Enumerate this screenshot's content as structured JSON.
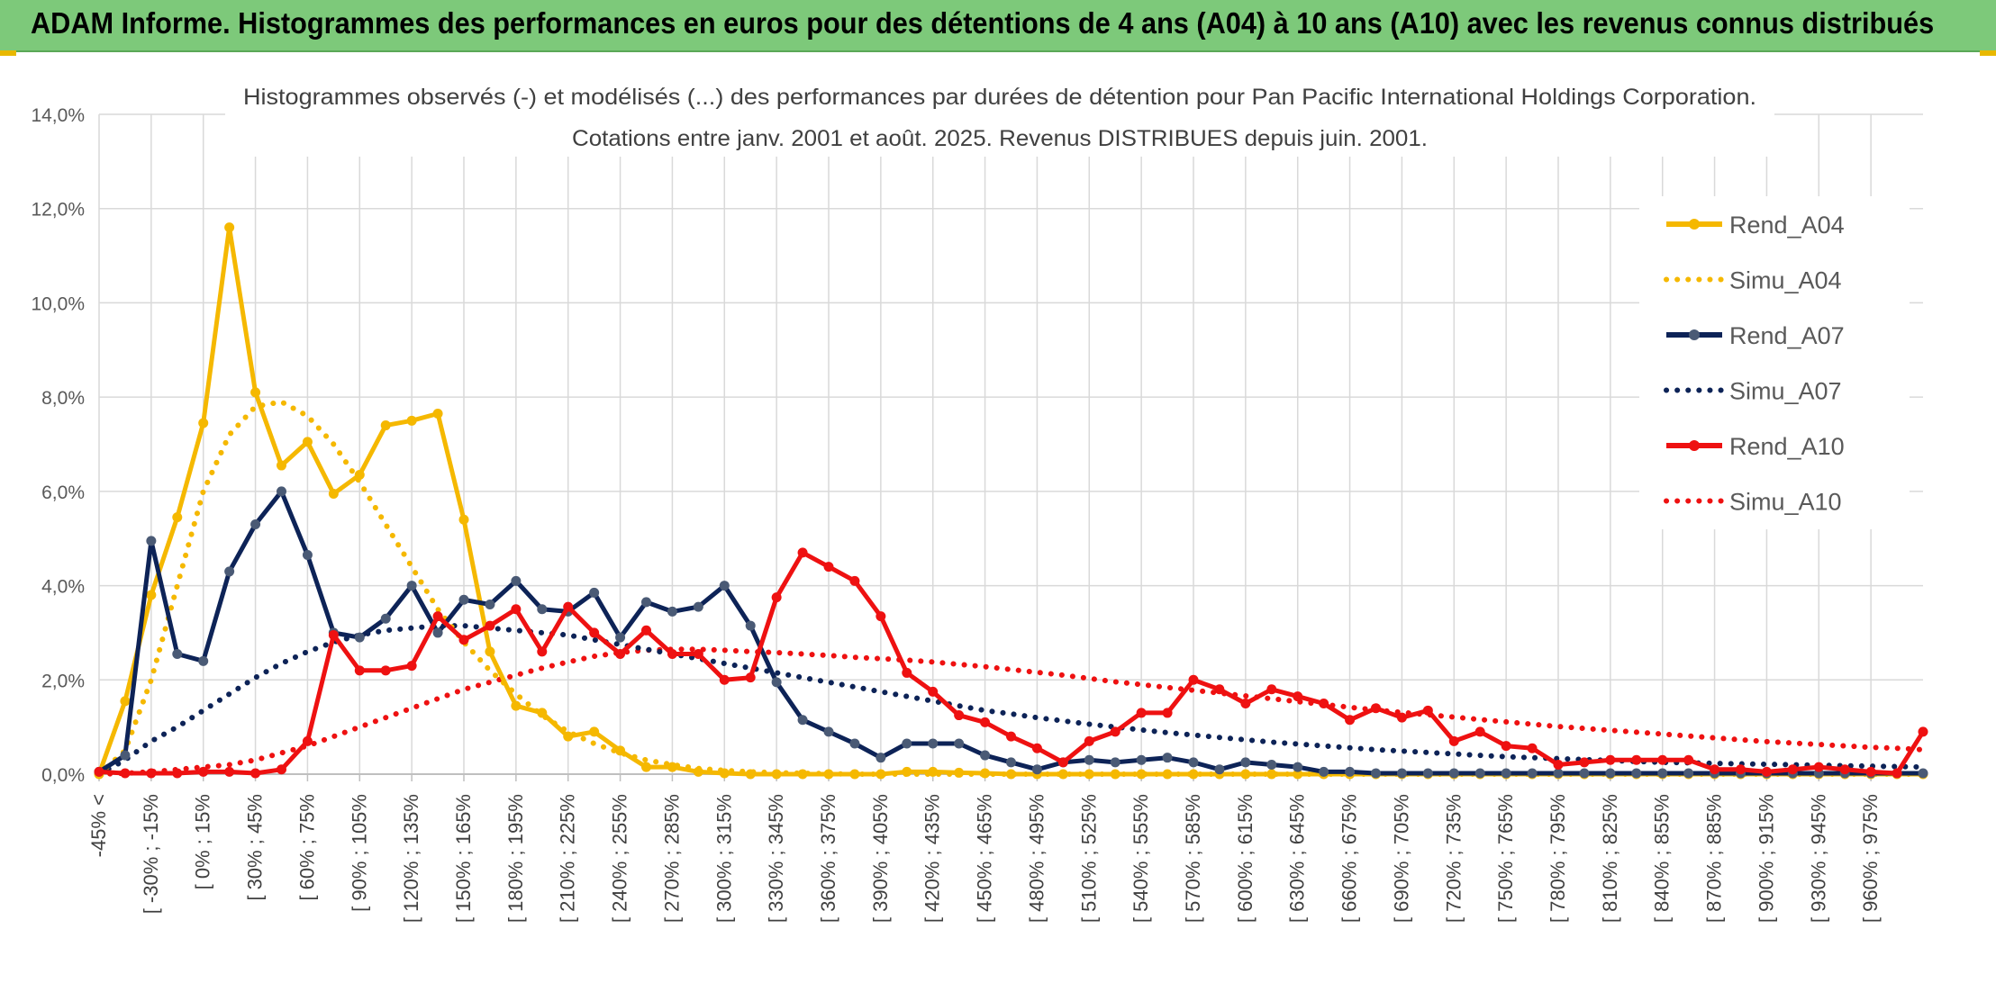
{
  "banner": {
    "title": "ADAM Informe. Histogrammes des performances en euros pour des détentions de 4 ans (A04) à 10 ans (A10) avec les revenus connus distribués"
  },
  "colors": {
    "banner": "#7dc97a",
    "a04": "#f5b800",
    "a07": "#0d2357",
    "a07_marker": "#4a5a75",
    "a10": "#ee1111",
    "grid": "#d9d9d9"
  },
  "chart_data": {
    "type": "line",
    "title_line1": "Histogrammes observés (-) et modélisés (...) des performances par durées de détention pour Pan Pacific International Holdings Corporation.",
    "title_line2": "Cotations entre janv. 2001 et août. 2025. Revenus DISTRIBUES depuis juin. 2001.",
    "ylim": [
      0,
      14
    ],
    "yticks": [
      "0,0%",
      "2,0%",
      "4,0%",
      "6,0%",
      "8,0%",
      "10,0%",
      "12,0%",
      "14,0%"
    ],
    "grid": true,
    "legend_position": "right",
    "x_labels": [
      "-45% <",
      "[ -30% ; -15%",
      "[ 0% ; 15%",
      "[ 30% ; 45%",
      "[ 60% ; 75%",
      "[ 90% ; 105%",
      "[ 120% ; 135%",
      "[ 150% ; 165%",
      "[ 180% ; 195%",
      "[ 210% ; 225%",
      "[ 240% ; 255%",
      "[ 270% ; 285%",
      "[ 300% ; 315%",
      "[ 330% ; 345%",
      "[ 360% ; 375%",
      "[ 390% ; 405%",
      "[ 420% ; 435%",
      "[ 450% ; 465%",
      "[ 480% ; 495%",
      "[ 510% ; 525%",
      "[ 540% ; 555%",
      "[ 570% ; 585%",
      "[ 600% ; 615%",
      "[ 630% ; 645%",
      "[ 660% ; 675%",
      "[ 690% ; 705%",
      "[ 720% ; 735%",
      "[ 750% ; 765%",
      "[ 780% ; 795%",
      "[ 810% ; 825%",
      "[ 840% ; 855%",
      "[ 870% ; 885%",
      "[ 900% ; 915%",
      "[ 930% ; 945%",
      "[ 960% ; 975%"
    ],
    "series": [
      {
        "name": "Rend_A04",
        "style": "solid",
        "color": "#f5b800",
        "marker_color": "#f5b800",
        "values": [
          0.0,
          1.55,
          3.8,
          5.45,
          7.45,
          11.6,
          8.1,
          6.55,
          7.05,
          5.95,
          6.35,
          7.4,
          7.5,
          7.65,
          5.4,
          2.6,
          1.45,
          1.3,
          0.8,
          0.9,
          0.5,
          0.15,
          0.15,
          0.05,
          0.02,
          0,
          0,
          0,
          0,
          0,
          0,
          0.05,
          0.05,
          0.03,
          0.02,
          0,
          0,
          0,
          0,
          0,
          0,
          0,
          0,
          0,
          0,
          0,
          0,
          0,
          0,
          0,
          0,
          0,
          0,
          0,
          0,
          0,
          0,
          0,
          0,
          0,
          0,
          0,
          0,
          0,
          0,
          0,
          0,
          0,
          0,
          0,
          0
        ]
      },
      {
        "name": "Simu_A04",
        "style": "dotted",
        "color": "#f5b800",
        "values": [
          0.0,
          0.5,
          2.0,
          4.0,
          6.0,
          7.2,
          7.8,
          7.9,
          7.6,
          7.0,
          6.2,
          5.3,
          4.4,
          3.5,
          2.8,
          2.2,
          1.7,
          1.25,
          0.9,
          0.65,
          0.45,
          0.3,
          0.2,
          0.12,
          0.08,
          0.05,
          0.03,
          0.02,
          0.01,
          0,
          0,
          0,
          0,
          0,
          0,
          0,
          0,
          0,
          0,
          0,
          0,
          0,
          0,
          0,
          0,
          0,
          0,
          0,
          0,
          0,
          0,
          0,
          0,
          0,
          0,
          0,
          0,
          0,
          0,
          0,
          0,
          0,
          0,
          0,
          0,
          0,
          0,
          0,
          0,
          0,
          0
        ]
      },
      {
        "name": "Rend_A07",
        "style": "solid",
        "color": "#0d2357",
        "marker_color": "#4a5a75",
        "values": [
          0.05,
          0.4,
          4.95,
          2.55,
          2.4,
          4.3,
          5.3,
          6.0,
          4.65,
          3.0,
          2.9,
          3.3,
          4.0,
          3.0,
          3.7,
          3.6,
          4.1,
          3.5,
          3.45,
          3.85,
          2.9,
          3.65,
          3.45,
          3.55,
          4.0,
          3.15,
          1.95,
          1.15,
          0.9,
          0.65,
          0.35,
          0.65,
          0.65,
          0.65,
          0.4,
          0.25,
          0.1,
          0.25,
          0.3,
          0.25,
          0.3,
          0.35,
          0.25,
          0.1,
          0.25,
          0.2,
          0.15,
          0.05,
          0.05,
          0.02,
          0.02,
          0.02,
          0.02,
          0.02,
          0.02,
          0.02,
          0.02,
          0.02,
          0.02,
          0.02,
          0.02,
          0.02,
          0.02,
          0.02,
          0.02,
          0.02,
          0.02,
          0.02,
          0.02,
          0.02,
          0.02
        ]
      },
      {
        "name": "Simu_A07",
        "style": "dotted",
        "color": "#0d2357",
        "values": [
          0.0,
          0.3,
          0.7,
          1.0,
          1.35,
          1.7,
          2.05,
          2.35,
          2.6,
          2.8,
          2.95,
          3.05,
          3.1,
          3.15,
          3.15,
          3.1,
          3.05,
          3.0,
          2.95,
          2.85,
          2.75,
          2.65,
          2.55,
          2.45,
          2.35,
          2.25,
          2.15,
          2.05,
          1.95,
          1.85,
          1.75,
          1.65,
          1.55,
          1.45,
          1.35,
          1.28,
          1.2,
          1.13,
          1.06,
          1.0,
          0.94,
          0.88,
          0.83,
          0.78,
          0.73,
          0.68,
          0.64,
          0.6,
          0.56,
          0.52,
          0.49,
          0.46,
          0.43,
          0.4,
          0.37,
          0.35,
          0.33,
          0.31,
          0.29,
          0.27,
          0.25,
          0.24,
          0.23,
          0.22,
          0.21,
          0.2,
          0.19,
          0.18,
          0.17,
          0.16,
          0.15
        ]
      },
      {
        "name": "Rend_A10",
        "style": "solid",
        "color": "#ee1111",
        "marker_color": "#ee1111",
        "values": [
          0.05,
          0.02,
          0.02,
          0.02,
          0.05,
          0.05,
          0.02,
          0.1,
          0.7,
          2.95,
          2.2,
          2.2,
          2.3,
          3.35,
          2.85,
          3.15,
          3.5,
          2.6,
          3.55,
          3.0,
          2.55,
          3.05,
          2.55,
          2.55,
          2.0,
          2.05,
          3.75,
          4.7,
          4.4,
          4.1,
          3.35,
          2.15,
          1.75,
          1.25,
          1.1,
          0.8,
          0.55,
          0.25,
          0.7,
          0.9,
          1.3,
          1.3,
          2.0,
          1.8,
          1.5,
          1.8,
          1.65,
          1.5,
          1.15,
          1.4,
          1.2,
          1.35,
          0.7,
          0.9,
          0.6,
          0.55,
          0.2,
          0.25,
          0.3,
          0.3,
          0.3,
          0.3,
          0.1,
          0.1,
          0.05,
          0.1,
          0.15,
          0.1,
          0.05,
          0.02,
          0.9
        ]
      },
      {
        "name": "Simu_A10",
        "style": "dotted",
        "color": "#ee1111",
        "values": [
          0.0,
          0.02,
          0.05,
          0.1,
          0.15,
          0.2,
          0.3,
          0.45,
          0.6,
          0.8,
          1.0,
          1.2,
          1.4,
          1.6,
          1.8,
          1.95,
          2.1,
          2.25,
          2.38,
          2.5,
          2.58,
          2.63,
          2.65,
          2.65,
          2.63,
          2.6,
          2.58,
          2.55,
          2.52,
          2.48,
          2.45,
          2.42,
          2.38,
          2.33,
          2.28,
          2.22,
          2.16,
          2.1,
          2.03,
          1.96,
          1.9,
          1.84,
          1.78,
          1.72,
          1.66,
          1.6,
          1.54,
          1.48,
          1.42,
          1.36,
          1.31,
          1.26,
          1.21,
          1.16,
          1.11,
          1.06,
          1.01,
          0.97,
          0.93,
          0.89,
          0.85,
          0.81,
          0.77,
          0.73,
          0.69,
          0.66,
          0.63,
          0.6,
          0.57,
          0.55,
          0.52
        ]
      }
    ]
  }
}
